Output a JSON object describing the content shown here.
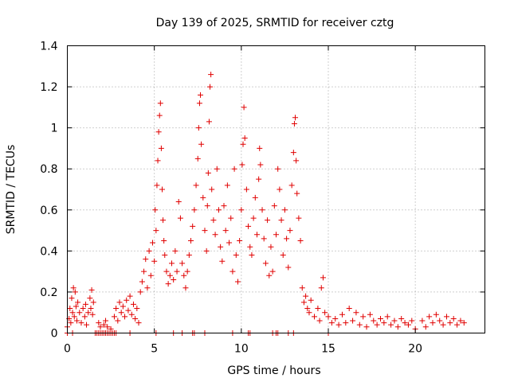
{
  "chart_data": {
    "type": "scatter",
    "title": "Day 139 of 2025, SRMTID for receiver cztg",
    "xlabel": "GPS time / hours",
    "ylabel": "SRMTID / TECUs",
    "xlim": [
      0,
      24
    ],
    "ylim": [
      0,
      1.4
    ],
    "x_ticks": [
      0,
      5,
      10,
      15,
      20
    ],
    "x_tick_labels": [
      "0",
      "5",
      "10",
      "15",
      "20"
    ],
    "y_ticks": [
      0,
      0.2,
      0.4,
      0.6,
      0.8,
      1.0,
      1.2,
      1.4
    ],
    "y_tick_labels": [
      "0",
      "0.2",
      "0.4",
      "0.6",
      "0.8",
      "1",
      "1.2",
      "1.4"
    ],
    "grid": true,
    "marker": "+",
    "color": "#e00000",
    "series": [
      {
        "name": "SRMTID",
        "points": [
          [
            0.0,
            0.03
          ],
          [
            0.1,
            0.07
          ],
          [
            0.15,
            0.12
          ],
          [
            0.2,
            0.05
          ],
          [
            0.25,
            0.17
          ],
          [
            0.3,
            0.1
          ],
          [
            0.35,
            0.22
          ],
          [
            0.4,
            0.08
          ],
          [
            0.45,
            0.2
          ],
          [
            0.5,
            0.13
          ],
          [
            0.55,
            0.06
          ],
          [
            0.6,
            0.15
          ],
          [
            0.7,
            0.1
          ],
          [
            0.8,
            0.05
          ],
          [
            0.9,
            0.12
          ],
          [
            1.0,
            0.08
          ],
          [
            1.05,
            0.14
          ],
          [
            1.1,
            0.04
          ],
          [
            1.2,
            0.1
          ],
          [
            1.3,
            0.17
          ],
          [
            1.35,
            0.12
          ],
          [
            1.4,
            0.21
          ],
          [
            1.45,
            0.09
          ],
          [
            1.5,
            0.15
          ],
          [
            1.8,
            0.05
          ],
          [
            1.9,
            0.03
          ],
          [
            2.1,
            0.04
          ],
          [
            2.2,
            0.06
          ],
          [
            2.3,
            0.03
          ],
          [
            2.5,
            0.02
          ],
          [
            2.7,
            0.08
          ],
          [
            2.8,
            0.12
          ],
          [
            2.9,
            0.06
          ],
          [
            3.0,
            0.15
          ],
          [
            3.1,
            0.1
          ],
          [
            3.2,
            0.13
          ],
          [
            3.3,
            0.08
          ],
          [
            3.4,
            0.16
          ],
          [
            3.5,
            0.11
          ],
          [
            3.6,
            0.18
          ],
          [
            3.7,
            0.09
          ],
          [
            3.8,
            0.14
          ],
          [
            3.9,
            0.07
          ],
          [
            4.0,
            0.12
          ],
          [
            4.1,
            0.05
          ],
          [
            4.2,
            0.2
          ],
          [
            4.3,
            0.25
          ],
          [
            4.4,
            0.3
          ],
          [
            4.5,
            0.36
          ],
          [
            4.6,
            0.22
          ],
          [
            4.7,
            0.4
          ],
          [
            4.8,
            0.28
          ],
          [
            4.9,
            0.44
          ],
          [
            5.0,
            0.35
          ],
          [
            5.05,
            0.6
          ],
          [
            5.1,
            0.5
          ],
          [
            5.15,
            0.72
          ],
          [
            5.2,
            0.84
          ],
          [
            5.25,
            0.98
          ],
          [
            5.3,
            1.06
          ],
          [
            5.35,
            1.12
          ],
          [
            5.4,
            0.9
          ],
          [
            5.45,
            0.7
          ],
          [
            5.5,
            0.55
          ],
          [
            5.55,
            0.45
          ],
          [
            5.6,
            0.38
          ],
          [
            5.7,
            0.3
          ],
          [
            5.8,
            0.24
          ],
          [
            5.9,
            0.28
          ],
          [
            6.0,
            0.34
          ],
          [
            6.1,
            0.26
          ],
          [
            6.2,
            0.4
          ],
          [
            6.3,
            0.3
          ],
          [
            6.4,
            0.64
          ],
          [
            6.5,
            0.56
          ],
          [
            6.6,
            0.34
          ],
          [
            6.7,
            0.28
          ],
          [
            6.8,
            0.22
          ],
          [
            6.9,
            0.3
          ],
          [
            7.0,
            0.38
          ],
          [
            7.1,
            0.45
          ],
          [
            7.2,
            0.52
          ],
          [
            7.3,
            0.6
          ],
          [
            7.4,
            0.72
          ],
          [
            7.5,
            0.85
          ],
          [
            7.55,
            1.0
          ],
          [
            7.6,
            1.12
          ],
          [
            7.65,
            1.16
          ],
          [
            7.7,
            0.92
          ],
          [
            7.8,
            0.66
          ],
          [
            7.9,
            0.5
          ],
          [
            8.0,
            0.4
          ],
          [
            8.05,
            0.62
          ],
          [
            8.1,
            0.78
          ],
          [
            8.15,
            1.03
          ],
          [
            8.2,
            1.2
          ],
          [
            8.25,
            1.26
          ],
          [
            8.3,
            0.7
          ],
          [
            8.4,
            0.55
          ],
          [
            8.5,
            0.48
          ],
          [
            8.6,
            0.8
          ],
          [
            8.7,
            0.6
          ],
          [
            8.8,
            0.42
          ],
          [
            8.9,
            0.35
          ],
          [
            9.0,
            0.62
          ],
          [
            9.1,
            0.5
          ],
          [
            9.2,
            0.72
          ],
          [
            9.3,
            0.44
          ],
          [
            9.4,
            0.56
          ],
          [
            9.5,
            0.3
          ],
          [
            9.6,
            0.8
          ],
          [
            9.7,
            0.38
          ],
          [
            9.8,
            0.25
          ],
          [
            9.9,
            0.45
          ],
          [
            10.0,
            0.6
          ],
          [
            10.05,
            0.82
          ],
          [
            10.1,
            0.92
          ],
          [
            10.15,
            1.1
          ],
          [
            10.2,
            0.95
          ],
          [
            10.3,
            0.7
          ],
          [
            10.4,
            0.52
          ],
          [
            10.5,
            0.42
          ],
          [
            10.6,
            0.38
          ],
          [
            10.7,
            0.56
          ],
          [
            10.8,
            0.66
          ],
          [
            10.9,
            0.48
          ],
          [
            11.0,
            0.75
          ],
          [
            11.05,
            0.9
          ],
          [
            11.1,
            0.82
          ],
          [
            11.2,
            0.6
          ],
          [
            11.3,
            0.46
          ],
          [
            11.4,
            0.34
          ],
          [
            11.5,
            0.55
          ],
          [
            11.6,
            0.28
          ],
          [
            11.7,
            0.42
          ],
          [
            11.8,
            0.3
          ],
          [
            11.9,
            0.62
          ],
          [
            12.0,
            0.48
          ],
          [
            12.1,
            0.8
          ],
          [
            12.2,
            0.7
          ],
          [
            12.3,
            0.55
          ],
          [
            12.4,
            0.38
          ],
          [
            12.5,
            0.6
          ],
          [
            12.6,
            0.46
          ],
          [
            12.7,
            0.32
          ],
          [
            12.8,
            0.5
          ],
          [
            12.9,
            0.72
          ],
          [
            13.0,
            0.88
          ],
          [
            13.05,
            1.02
          ],
          [
            13.1,
            1.05
          ],
          [
            13.15,
            0.84
          ],
          [
            13.2,
            0.68
          ],
          [
            13.3,
            0.56
          ],
          [
            13.4,
            0.45
          ],
          [
            13.5,
            0.22
          ],
          [
            13.6,
            0.15
          ],
          [
            13.7,
            0.18
          ],
          [
            13.8,
            0.12
          ],
          [
            13.9,
            0.1
          ],
          [
            14.0,
            0.16
          ],
          [
            14.2,
            0.08
          ],
          [
            14.4,
            0.12
          ],
          [
            14.5,
            0.06
          ],
          [
            14.6,
            0.22
          ],
          [
            14.7,
            0.27
          ],
          [
            14.8,
            0.1
          ],
          [
            15.0,
            0.08
          ],
          [
            15.2,
            0.05
          ],
          [
            15.4,
            0.07
          ],
          [
            15.6,
            0.04
          ],
          [
            15.8,
            0.09
          ],
          [
            16.0,
            0.05
          ],
          [
            16.2,
            0.12
          ],
          [
            16.4,
            0.06
          ],
          [
            16.6,
            0.1
          ],
          [
            16.8,
            0.04
          ],
          [
            17.0,
            0.08
          ],
          [
            17.2,
            0.03
          ],
          [
            17.4,
            0.09
          ],
          [
            17.6,
            0.06
          ],
          [
            17.8,
            0.04
          ],
          [
            18.0,
            0.07
          ],
          [
            18.2,
            0.05
          ],
          [
            18.4,
            0.08
          ],
          [
            18.6,
            0.04
          ],
          [
            18.8,
            0.06
          ],
          [
            19.0,
            0.03
          ],
          [
            19.2,
            0.07
          ],
          [
            19.4,
            0.05
          ],
          [
            19.6,
            0.04
          ],
          [
            19.8,
            0.06
          ],
          [
            20.0,
            0.02
          ],
          [
            20.4,
            0.06
          ],
          [
            20.6,
            0.03
          ],
          [
            20.8,
            0.08
          ],
          [
            21.0,
            0.05
          ],
          [
            21.2,
            0.09
          ],
          [
            21.4,
            0.06
          ],
          [
            21.6,
            0.04
          ],
          [
            21.8,
            0.08
          ],
          [
            22.0,
            0.05
          ],
          [
            22.2,
            0.07
          ],
          [
            22.4,
            0.04
          ],
          [
            22.6,
            0.06
          ],
          [
            22.8,
            0.05
          ]
        ]
      }
    ],
    "baseline_points": [
      [
        0.0,
        0
      ],
      [
        0.3,
        0
      ],
      [
        1.6,
        0
      ],
      [
        1.7,
        0
      ],
      [
        1.8,
        0
      ],
      [
        1.9,
        0
      ],
      [
        2.0,
        0
      ],
      [
        2.1,
        0
      ],
      [
        2.2,
        0
      ],
      [
        2.3,
        0
      ],
      [
        2.4,
        0
      ],
      [
        2.5,
        0
      ],
      [
        2.6,
        0
      ],
      [
        2.7,
        0
      ],
      [
        2.8,
        0
      ],
      [
        3.6,
        0
      ],
      [
        5.1,
        0
      ],
      [
        6.1,
        0
      ],
      [
        6.6,
        0
      ],
      [
        7.2,
        0
      ],
      [
        7.3,
        0
      ],
      [
        7.9,
        0
      ],
      [
        9.5,
        0
      ],
      [
        10.4,
        0
      ],
      [
        10.5,
        0
      ],
      [
        11.8,
        0
      ],
      [
        12.0,
        0
      ],
      [
        12.1,
        0
      ],
      [
        12.7,
        0
      ],
      [
        13.0,
        0
      ],
      [
        15.0,
        0
      ]
    ]
  }
}
